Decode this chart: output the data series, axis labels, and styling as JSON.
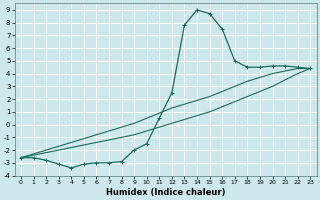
{
  "xlabel": "Humidex (Indice chaleur)",
  "bg_color": "#cce8ec",
  "grid_color": "#ffffff",
  "line_color": "#1a6b5a",
  "xlim": [
    -0.5,
    23.5
  ],
  "ylim": [
    -4,
    9.5
  ],
  "xticks": [
    0,
    1,
    2,
    3,
    4,
    5,
    6,
    7,
    8,
    9,
    10,
    11,
    12,
    13,
    14,
    15,
    16,
    17,
    18,
    19,
    20,
    21,
    22,
    23
  ],
  "yticks": [
    -4,
    -3,
    -2,
    -1,
    0,
    1,
    2,
    3,
    4,
    5,
    6,
    7,
    8,
    9
  ],
  "series1_x": [
    0,
    1,
    2,
    3,
    4,
    5,
    6,
    7,
    8,
    9,
    10,
    11,
    12,
    13,
    14,
    15,
    16,
    17,
    18,
    19,
    20,
    21,
    22,
    23
  ],
  "series1_y": [
    -2.6,
    -2.6,
    -2.8,
    -3.1,
    -3.4,
    -3.1,
    -3.0,
    -3.0,
    -2.9,
    -2.0,
    -1.5,
    0.5,
    2.5,
    7.8,
    9.0,
    8.7,
    7.5,
    5.0,
    4.5,
    4.5,
    4.6,
    4.6,
    4.5,
    4.4
  ],
  "series2_x": [
    0,
    1,
    2,
    3,
    4,
    5,
    6,
    7,
    8,
    9,
    10,
    11,
    12,
    13,
    14,
    15,
    16,
    17,
    18,
    19,
    20,
    21,
    22,
    23
  ],
  "series2_y": [
    -2.6,
    -2.4,
    -2.2,
    -2.0,
    -1.8,
    -1.6,
    -1.4,
    -1.2,
    -1.0,
    -0.8,
    -0.5,
    -0.2,
    0.1,
    0.4,
    0.7,
    1.0,
    1.4,
    1.8,
    2.2,
    2.6,
    3.0,
    3.5,
    4.0,
    4.4
  ],
  "series3_x": [
    0,
    1,
    2,
    3,
    4,
    5,
    6,
    7,
    8,
    9,
    10,
    11,
    12,
    13,
    14,
    15,
    16,
    17,
    18,
    19,
    20,
    21,
    22,
    23
  ],
  "series3_y": [
    -2.6,
    -2.3,
    -2.0,
    -1.7,
    -1.4,
    -1.1,
    -0.8,
    -0.5,
    -0.2,
    0.1,
    0.5,
    0.9,
    1.3,
    1.6,
    1.9,
    2.2,
    2.6,
    3.0,
    3.4,
    3.7,
    4.0,
    4.2,
    4.4,
    4.4
  ]
}
